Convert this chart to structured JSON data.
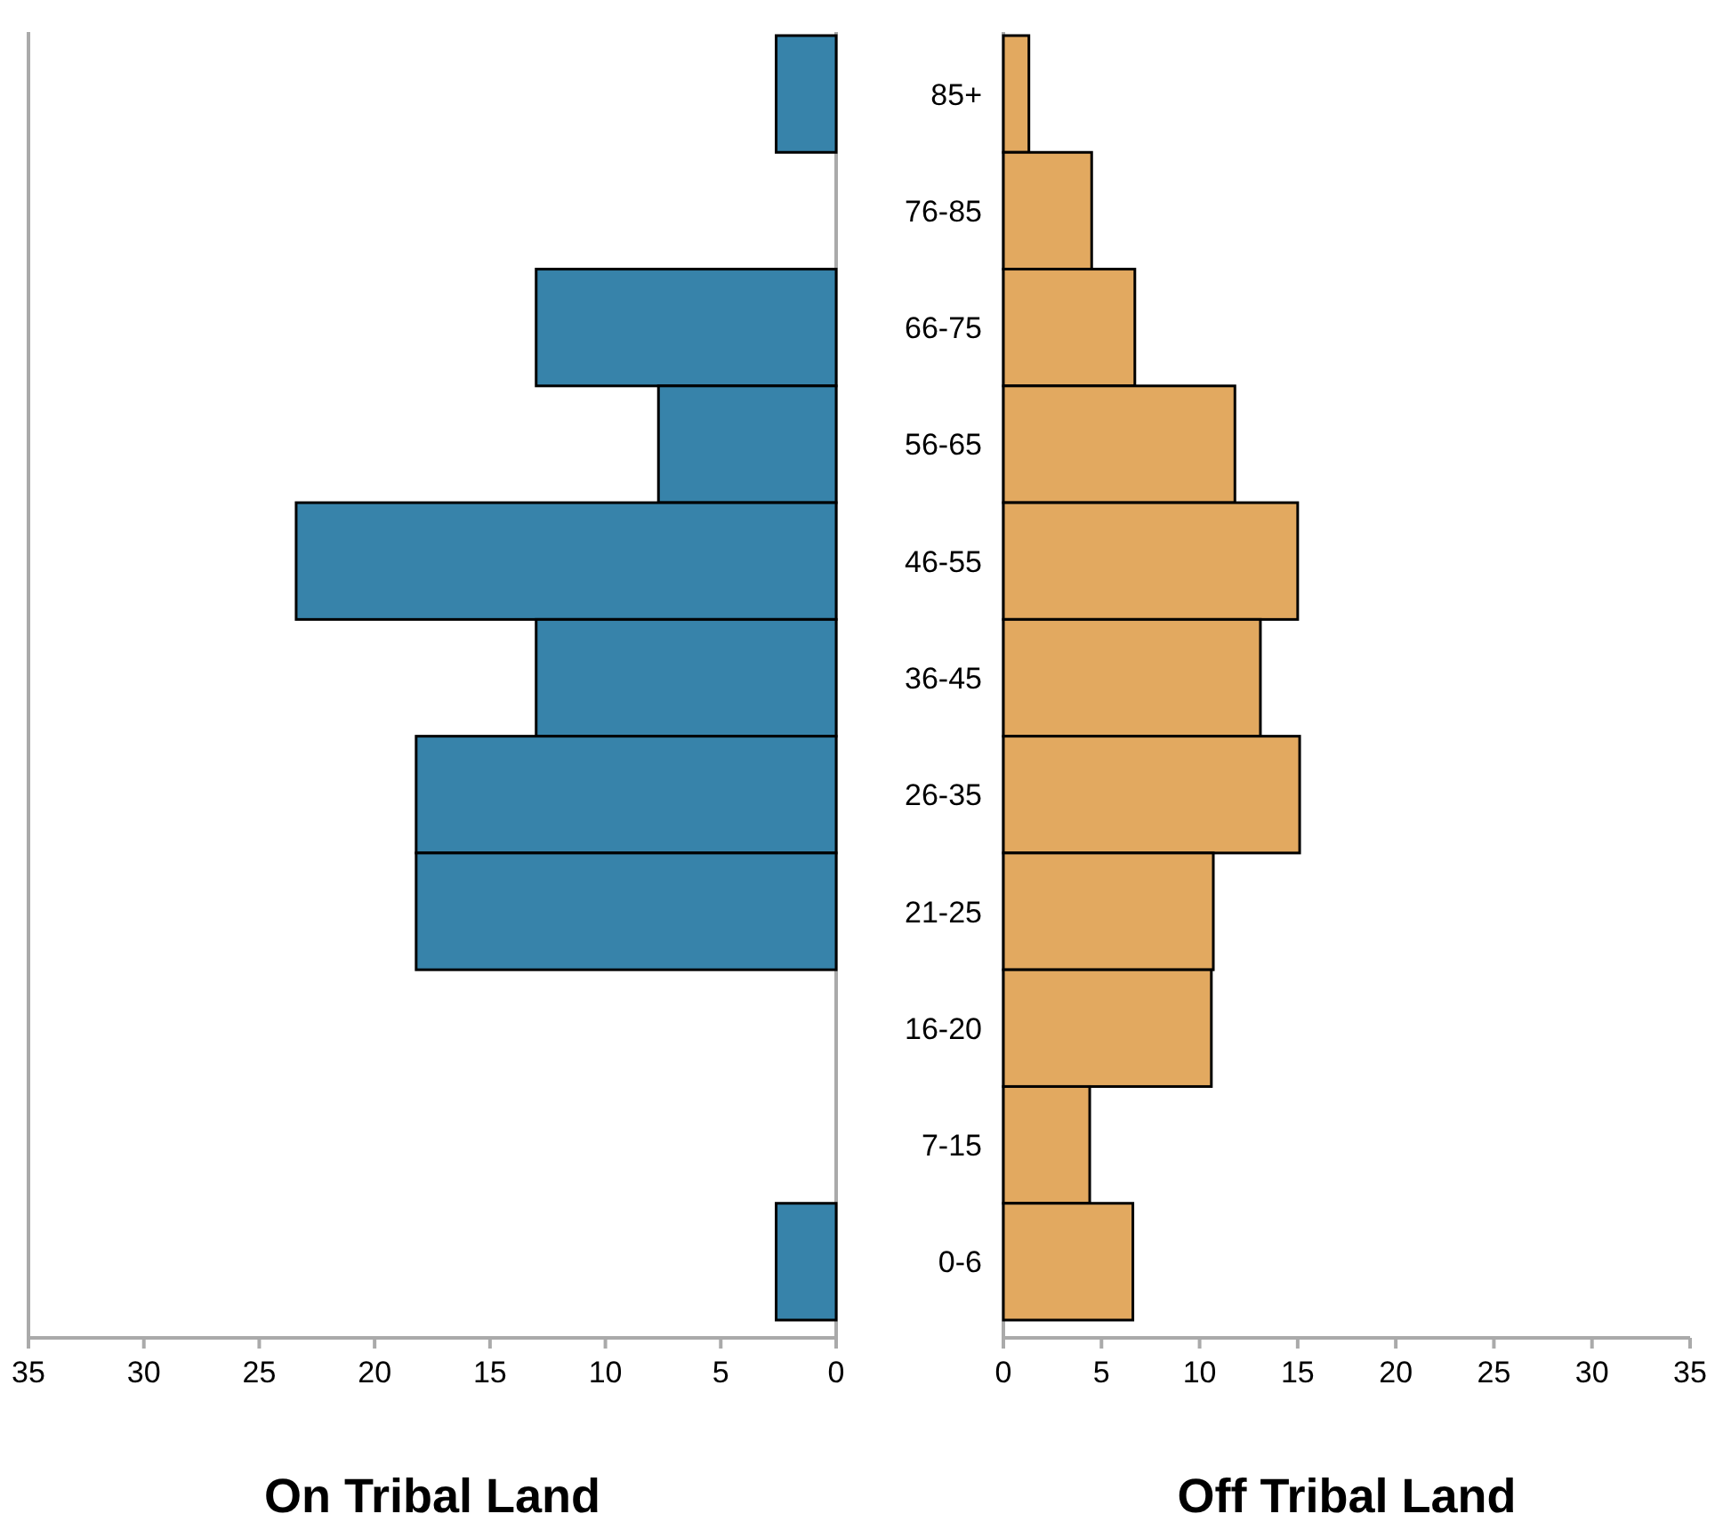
{
  "chart_data": [
    {
      "type": "bar",
      "orientation": "horizontal",
      "xlabel": "On Tribal Land",
      "categories": [
        "85+",
        "76-85",
        "66-75",
        "56-65",
        "46-55",
        "36-45",
        "26-35",
        "21-25",
        "16-20",
        "7-15",
        "0-6"
      ],
      "values": [
        2.6,
        0,
        13.0,
        7.7,
        23.4,
        13.0,
        18.2,
        18.2,
        0,
        0,
        2.6
      ],
      "color": "#3783aa",
      "xlim": [
        35,
        0
      ],
      "xticks": [
        35,
        30,
        25,
        20,
        15,
        10,
        5,
        0
      ]
    },
    {
      "type": "bar",
      "orientation": "horizontal",
      "xlabel": "Off Tribal Land",
      "categories": [
        null,
        null,
        null,
        null,
        null,
        null,
        null,
        null,
        null,
        null,
        null
      ],
      "values": [
        1.3,
        4.5,
        6.7,
        11.8,
        15.0,
        13.1,
        15.1,
        10.7,
        10.6,
        4.4,
        6.6
      ],
      "color": "#e2a960",
      "xlim": [
        0,
        35
      ],
      "xticks": [
        0,
        5,
        10,
        15,
        20,
        25,
        30,
        35
      ]
    }
  ]
}
